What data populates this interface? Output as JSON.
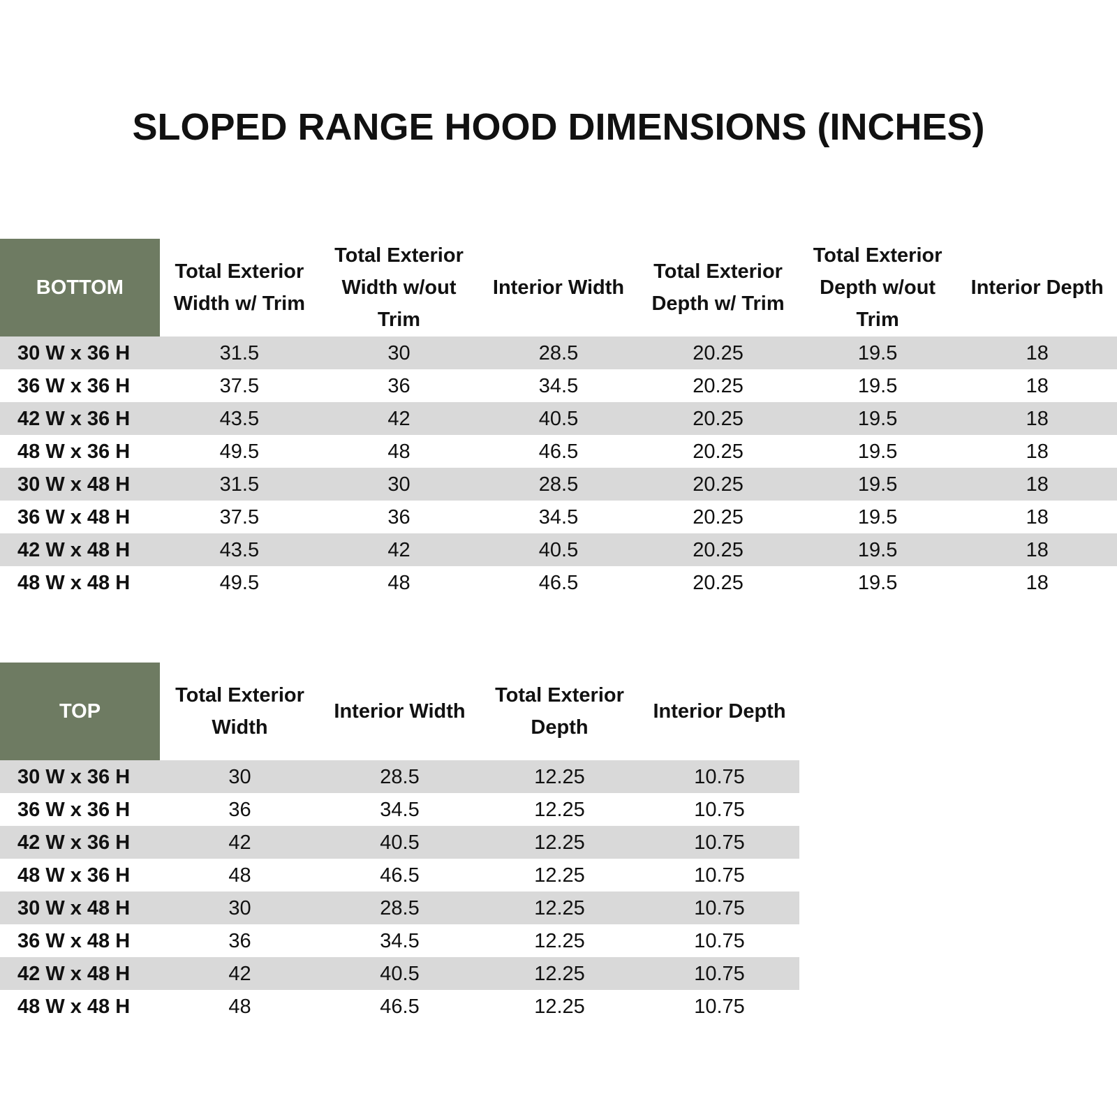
{
  "title": "SLOPED RANGE HOOD DIMENSIONS (INCHES)",
  "tables": [
    {
      "corner": "BOTTOM",
      "columns": [
        "Total Exterior Width w/ Trim",
        "Total Exterior Width w/out Trim",
        "Interior Width",
        "Total Exterior Depth w/ Trim",
        "Total Exterior Depth w/out Trim",
        "Interior Depth"
      ],
      "rows": [
        {
          "label": "30 W x 36 H",
          "values": [
            31.5,
            30,
            28.5,
            20.25,
            19.5,
            18
          ]
        },
        {
          "label": "36 W x 36 H",
          "values": [
            37.5,
            36,
            34.5,
            20.25,
            19.5,
            18
          ]
        },
        {
          "label": "42 W x 36 H",
          "values": [
            43.5,
            42,
            40.5,
            20.25,
            19.5,
            18
          ]
        },
        {
          "label": "48 W x 36 H",
          "values": [
            49.5,
            48,
            46.5,
            20.25,
            19.5,
            18
          ]
        },
        {
          "label": "30 W x 48 H",
          "values": [
            31.5,
            30,
            28.5,
            20.25,
            19.5,
            18
          ]
        },
        {
          "label": "36 W x 48 H",
          "values": [
            37.5,
            36,
            34.5,
            20.25,
            19.5,
            18
          ]
        },
        {
          "label": "42 W x 48 H",
          "values": [
            43.5,
            42,
            40.5,
            20.25,
            19.5,
            18
          ]
        },
        {
          "label": "48 W x 48 H",
          "values": [
            49.5,
            48,
            46.5,
            20.25,
            19.5,
            18
          ]
        }
      ]
    },
    {
      "corner": "TOP",
      "columns": [
        "Total Exterior Width",
        "Interior Width",
        "Total Exterior Depth",
        "Interior Depth"
      ],
      "rows": [
        {
          "label": "30 W x 36 H",
          "values": [
            30,
            28.5,
            12.25,
            10.75
          ]
        },
        {
          "label": "36 W x 36 H",
          "values": [
            36,
            34.5,
            12.25,
            10.75
          ]
        },
        {
          "label": "42 W x 36 H",
          "values": [
            42,
            40.5,
            12.25,
            10.75
          ]
        },
        {
          "label": "48 W x 36 H",
          "values": [
            48,
            46.5,
            12.25,
            10.75
          ]
        },
        {
          "label": "30 W x 48 H",
          "values": [
            30,
            28.5,
            12.25,
            10.75
          ]
        },
        {
          "label": "36 W x 48 H",
          "values": [
            36,
            34.5,
            12.25,
            10.75
          ]
        },
        {
          "label": "42 W x 48 H",
          "values": [
            42,
            40.5,
            12.25,
            10.75
          ]
        },
        {
          "label": "48 W x 48 H",
          "values": [
            48,
            46.5,
            12.25,
            10.75
          ]
        }
      ]
    }
  ]
}
